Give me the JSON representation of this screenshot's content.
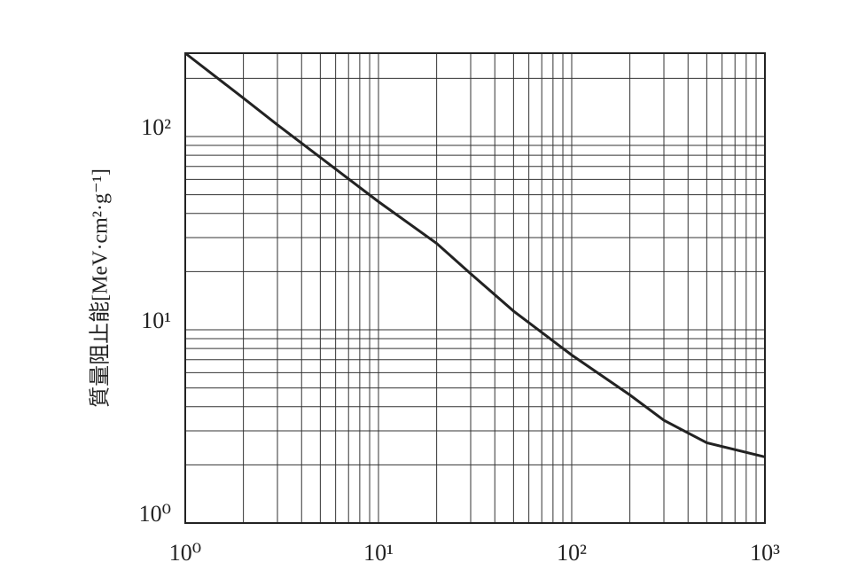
{
  "chart_data": {
    "type": "line",
    "y_label": "質量阻止能[MeV·cm²·g⁻¹]",
    "x": [
      1,
      2,
      3,
      5,
      10,
      20,
      30,
      50,
      100,
      200,
      300,
      500,
      1000
    ],
    "values": [
      270,
      158,
      115,
      78,
      46,
      28,
      19.5,
      12.5,
      7.4,
      4.6,
      3.4,
      2.6,
      2.2
    ],
    "color": "#222222",
    "log_x": true,
    "log_y": true,
    "xlim": [
      1,
      1000
    ],
    "ylim": [
      1,
      270
    ],
    "xticks": [
      {
        "value": 1,
        "label": "10⁰"
      },
      {
        "value": 10,
        "label": "10¹"
      },
      {
        "value": 100,
        "label": "10²"
      },
      {
        "value": 1000,
        "label": "10³"
      }
    ],
    "yticks": [
      {
        "value": 1,
        "label": "10⁰"
      },
      {
        "value": 10,
        "label": "10¹"
      },
      {
        "value": 100,
        "label": "10²"
      }
    ],
    "grid": true,
    "minor_grid": true
  }
}
